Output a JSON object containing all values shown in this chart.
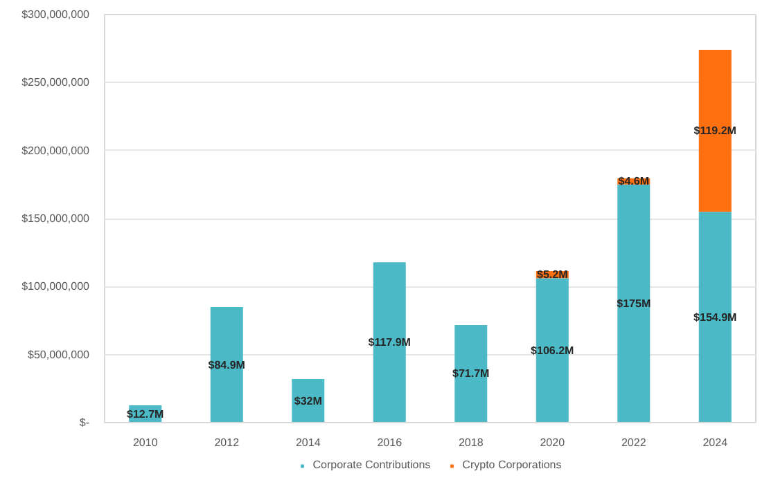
{
  "chart_data": {
    "type": "bar",
    "stacked": true,
    "categories": [
      "2010",
      "2012",
      "2014",
      "2016",
      "2018",
      "2020",
      "2022",
      "2024"
    ],
    "series": [
      {
        "name": "Corporate Contributions",
        "color": "#4bbac6",
        "values": [
          12700000,
          84900000,
          32000000,
          117900000,
          71700000,
          106200000,
          175000000,
          154900000
        ],
        "value_labels": [
          "$12.7M",
          "$84.9M",
          "$32M",
          "$117.9M",
          "$71.7M",
          "$106.2M",
          "$175M",
          "$154.9M"
        ]
      },
      {
        "name": "Crypto Corporations",
        "color": "#ff7010",
        "values": [
          null,
          null,
          null,
          null,
          null,
          5200000,
          4600000,
          119200000
        ],
        "value_labels": [
          null,
          null,
          null,
          null,
          null,
          "$5.2M",
          "$4.6M",
          "$119.2M"
        ]
      }
    ],
    "ylim": [
      0,
      300000000
    ],
    "yticks": [
      {
        "value": 0,
        "label": "$-"
      },
      {
        "value": 50000000,
        "label": "$50,000,000"
      },
      {
        "value": 100000000,
        "label": "$100,000,000"
      },
      {
        "value": 150000000,
        "label": "$150,000,000"
      },
      {
        "value": 200000000,
        "label": "$200,000,000"
      },
      {
        "value": 250000000,
        "label": "$250,000,000"
      },
      {
        "value": 300000000,
        "label": "$300,000,000"
      }
    ],
    "grid": "y",
    "legend": "bottom"
  }
}
